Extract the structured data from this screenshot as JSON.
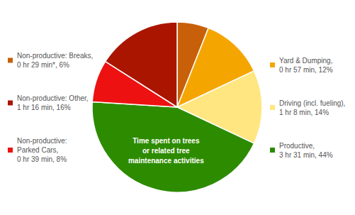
{
  "chart_data": {
    "type": "pie",
    "categories": [
      "Non-productive: Breaks,\n0 hr 29 min*, 6%",
      "Yard & Dumping,\n0 hr 57 min, 12%",
      "Driving (incl. fueling),\n1 hr 8 min, 14%",
      "Productive,\n3 hr 31 min, 44%",
      "Non-productive:\nParked Cars,\n0 hr 39 min, 8%",
      "Non-productive: Other,\n1 hr 16 min, 16%"
    ],
    "values": [
      6,
      12,
      14,
      44,
      8,
      16
    ],
    "colors": [
      "#c8600a",
      "#f5a500",
      "#ffe680",
      "#2d8b00",
      "#ee1111",
      "#aa1500"
    ],
    "annotations": [
      "Time spent on trees\nor related tree\nmaintenance activities"
    ],
    "legend": "sides"
  }
}
